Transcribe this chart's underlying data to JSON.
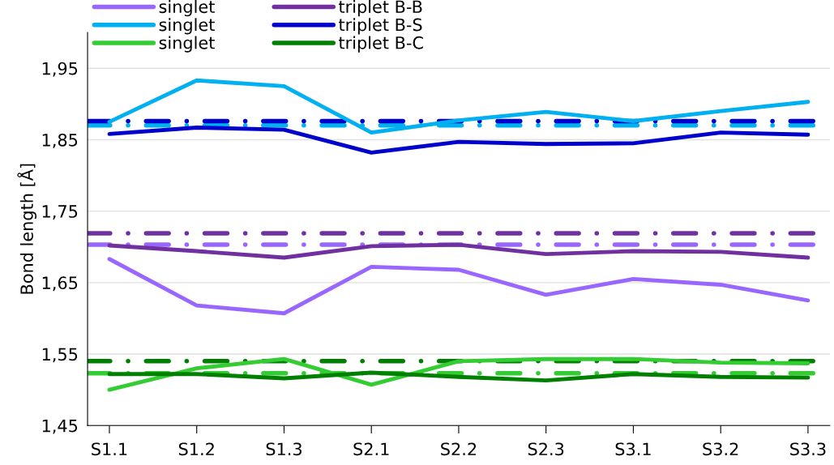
{
  "chart_data": {
    "type": "line",
    "ylabel": "Bond length [Å]",
    "categories": [
      "S1.1",
      "S1.2",
      "S1.3",
      "S2.1",
      "S2.2",
      "S2.3",
      "S3.1",
      "S3.2",
      "S3.3"
    ],
    "series": [
      {
        "name": "singlet",
        "color": "#9966ff",
        "values": [
          1.683,
          1.618,
          1.607,
          1.672,
          1.668,
          1.633,
          1.655,
          1.647,
          1.625
        ]
      },
      {
        "name": "singlet",
        "color": "#00b0f0",
        "values": [
          1.875,
          1.933,
          1.925,
          1.86,
          1.877,
          1.889,
          1.876,
          1.89,
          1.903
        ]
      },
      {
        "name": "singlet",
        "color": "#33cc33",
        "values": [
          1.5,
          1.53,
          1.543,
          1.507,
          1.54,
          1.543,
          1.543,
          1.538,
          1.537
        ]
      },
      {
        "name": "triplet B-B",
        "color": "#7030a0",
        "values": [
          1.702,
          1.694,
          1.685,
          1.701,
          1.703,
          1.69,
          1.694,
          1.693,
          1.685
        ]
      },
      {
        "name": "triplet B-S",
        "color": "#0000cc",
        "values": [
          1.858,
          1.867,
          1.864,
          1.832,
          1.847,
          1.844,
          1.845,
          1.86,
          1.857
        ]
      },
      {
        "name": "triplet B-C",
        "color": "#008000",
        "values": [
          1.522,
          1.522,
          1.516,
          1.524,
          1.518,
          1.513,
          1.522,
          1.518,
          1.517
        ]
      }
    ],
    "ref_lines": [
      {
        "axis": "y",
        "value": 1.703,
        "color": "#9966ff",
        "line_style": "dashdot"
      },
      {
        "axis": "y",
        "value": 1.87,
        "color": "#00b0f0",
        "line_style": "dashdot"
      },
      {
        "axis": "y",
        "value": 1.523,
        "color": "#33cc33",
        "line_style": "dashdot"
      },
      {
        "axis": "y",
        "value": 1.719,
        "color": "#7030a0",
        "line_style": "dashdot"
      },
      {
        "axis": "y",
        "value": 1.876,
        "color": "#0000cc",
        "line_style": "dashdot"
      },
      {
        "axis": "y",
        "value": 1.54,
        "color": "#008000",
        "line_style": "dashdot"
      }
    ],
    "ylim": [
      1.45,
      2.0
    ],
    "yticks": [
      {
        "value": 1.45,
        "label": "1,45"
      },
      {
        "value": 1.55,
        "label": "1,55"
      },
      {
        "value": 1.65,
        "label": "1,65"
      },
      {
        "value": 1.75,
        "label": "1,75"
      },
      {
        "value": 1.85,
        "label": "1,85"
      },
      {
        "value": 1.95,
        "label": "1,95"
      }
    ],
    "grid": "y",
    "legend": "top left",
    "marker": "none",
    "line_style": "solid"
  }
}
